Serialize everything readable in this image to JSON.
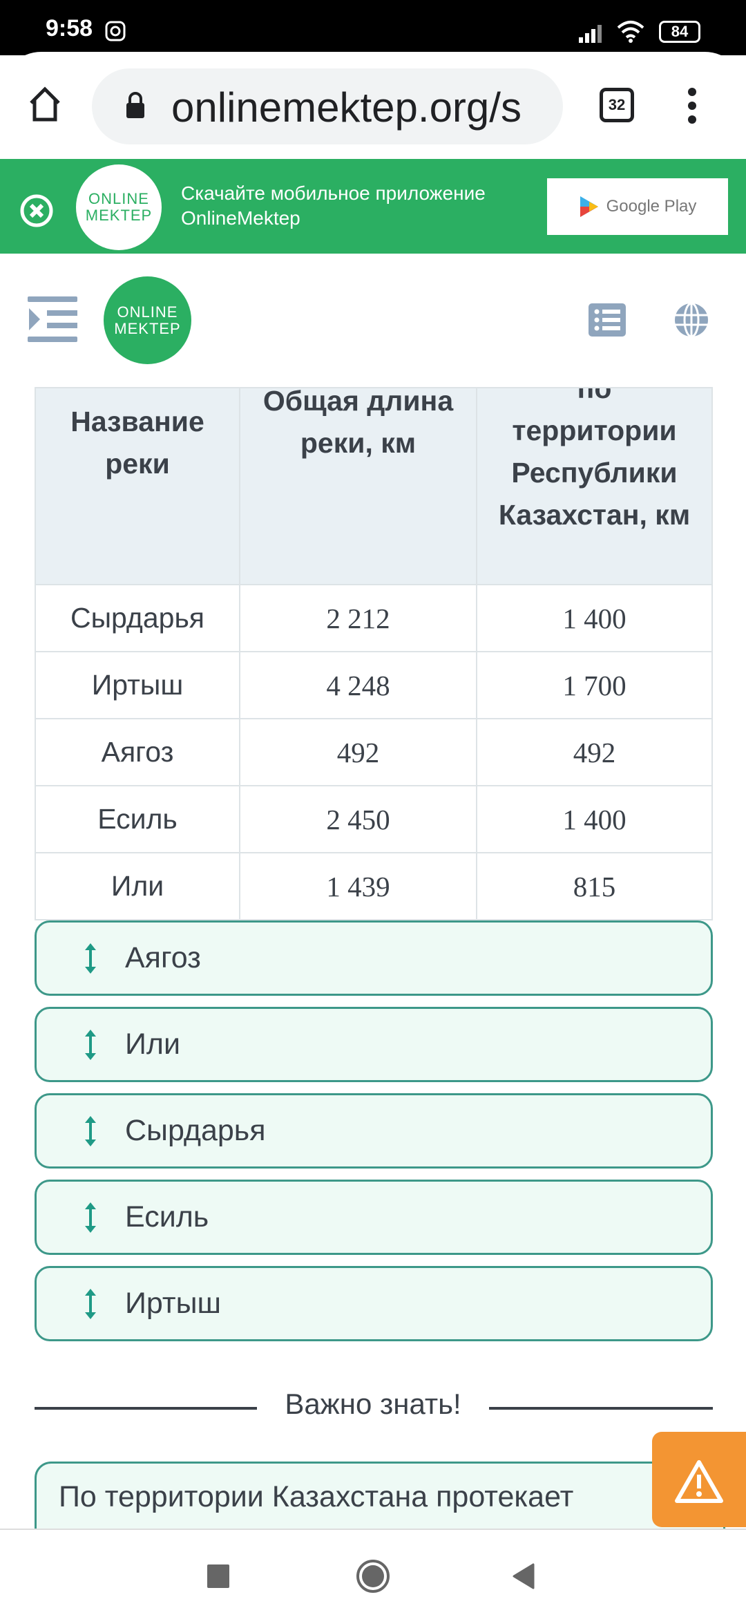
{
  "status_bar": {
    "time": "9:58",
    "battery": "84"
  },
  "browser": {
    "url": "onlinemektep.org/s",
    "tab_count": "32"
  },
  "banner": {
    "logo_line1": "ONLINE",
    "logo_line2": "MEKTEP",
    "text_line1": "Скачайте мобильное приложение",
    "text_line2": "OnlineMektep",
    "store_label": "Google Play"
  },
  "site_header": {
    "logo_line1": "ONLINE",
    "logo_line2": "MEKTEP"
  },
  "table": {
    "headers": [
      "Название реки",
      "Общая длина реки, км",
      "по территории Республики Казахстан, км"
    ],
    "rows": [
      [
        "Сырдарья",
        "2 212",
        "1 400"
      ],
      [
        "Иртыш",
        "4 248",
        "1 700"
      ],
      [
        "Аягоз",
        "492",
        "492"
      ],
      [
        "Есиль",
        "2 450",
        "1 400"
      ],
      [
        "Или",
        "1 439",
        "815"
      ]
    ]
  },
  "sortable_items": [
    "Аягоз",
    "Или",
    "Сырдарья",
    "Есиль",
    "Иртыш"
  ],
  "important": {
    "title": "Важно знать!",
    "text": "По территории Казахстана протекает"
  },
  "colors": {
    "banner": "#2baf62",
    "accent": "#1f9a86",
    "warning": "#f39533"
  }
}
